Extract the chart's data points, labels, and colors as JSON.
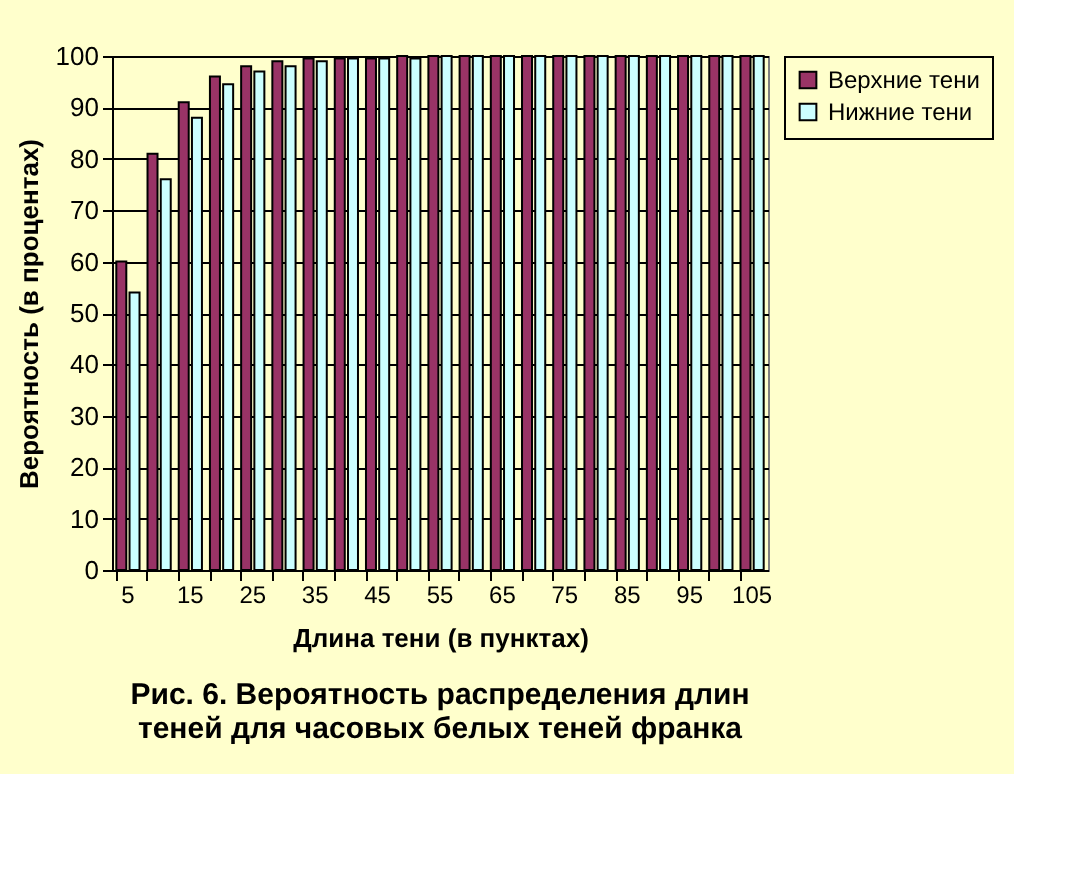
{
  "chart_data": {
    "type": "bar",
    "title": "Рис. 6. Вероятность распределения длин\nтеней для часовых белых теней франка",
    "xlabel": "Длина тени (в пунктах)",
    "ylabel": "Вероятность (в процентах)",
    "categories": [
      "5",
      null,
      "15",
      null,
      "25",
      null,
      "35",
      null,
      "45",
      null,
      "55",
      null,
      "65",
      null,
      "75",
      null,
      "85",
      null,
      "95",
      null,
      "105"
    ],
    "series": [
      {
        "name": "Верхние тени",
        "color": "#993366",
        "values": [
          60,
          81,
          91,
          96,
          98,
          99,
          99.5,
          99.5,
          99.5,
          100,
          100,
          100,
          100,
          100,
          100,
          100,
          100,
          100,
          100,
          100,
          100
        ]
      },
      {
        "name": "Нижние тени",
        "color": "#ccffff",
        "values": [
          54,
          76,
          88,
          94.5,
          97,
          98,
          99,
          99.5,
          99.5,
          99.5,
          100,
          100,
          100,
          100,
          100,
          100,
          100,
          100,
          100,
          100,
          100
        ]
      }
    ],
    "ylim": [
      0,
      100
    ],
    "yticks": [
      0,
      10,
      20,
      30,
      40,
      50,
      60,
      70,
      80,
      90,
      100
    ],
    "grid": "y",
    "legend": "right"
  }
}
